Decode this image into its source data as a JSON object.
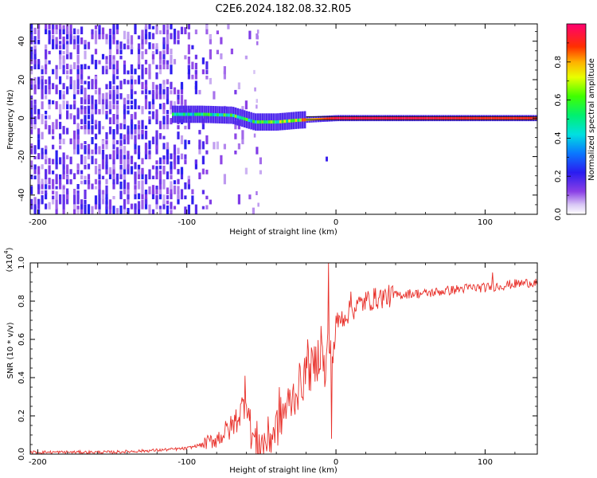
{
  "title": "C2E6.2024.182.08.32.R05",
  "chart_data": [
    {
      "type": "heatmap",
      "xlabel": "Height of straight line (km)",
      "ylabel": "Frequency (Hz)",
      "xlim": [
        -205,
        135
      ],
      "ylim": [
        -50,
        49
      ],
      "xticks": [
        -200,
        -100,
        0,
        100
      ],
      "yticks": [
        -40,
        -20,
        0,
        20,
        40
      ],
      "colorbar": {
        "label": "Normalized spectral amplitude",
        "range": [
          0,
          1
        ],
        "ticks": [
          "0.0",
          "0.2",
          "0.4",
          "0.6",
          "0.8"
        ]
      },
      "ridge": [
        {
          "x": -110,
          "freq": 2,
          "amp": 0.45
        },
        {
          "x": -90,
          "freq": 2,
          "amp": 0.5
        },
        {
          "x": -70,
          "freq": 1.5,
          "amp": 0.55
        },
        {
          "x": -55,
          "freq": -2,
          "amp": 0.5
        },
        {
          "x": -40,
          "freq": -2,
          "amp": 0.6
        },
        {
          "x": -25,
          "freq": -1,
          "amp": 0.7
        },
        {
          "x": 0,
          "freq": 0,
          "amp": 0.95
        },
        {
          "x": 50,
          "freq": 0,
          "amp": 0.95
        },
        {
          "x": 100,
          "freq": 0,
          "amp": 0.9
        },
        {
          "x": 135,
          "freq": 0,
          "amp": 0.9
        }
      ]
    },
    {
      "type": "line",
      "xlabel": "Height of straight line (km)",
      "ylabel": "SNR (10 * v/v)",
      "yscale_label": "(x10",
      "yscale_exp": "4",
      "xlim": [
        -205,
        135
      ],
      "ylim": [
        0,
        1.0
      ],
      "xticks": [
        -200,
        -100,
        0,
        100
      ],
      "yticks": [
        "0.0",
        "0.2",
        "0.4",
        "0.6",
        "0.8",
        "1.0"
      ],
      "color": "#e8302a",
      "series": [
        {
          "x": [
            -205,
            -180,
            -150,
            -120,
            -100,
            -90,
            -80,
            -70,
            -64,
            -60,
            -57,
            -54,
            -50,
            -45,
            -40,
            -35,
            -30,
            -25,
            -20,
            -15,
            -10,
            -7,
            -5,
            -3,
            0,
            5,
            10,
            15,
            20,
            25,
            30,
            40,
            50,
            60,
            70,
            80,
            90,
            100,
            110,
            120,
            135
          ],
          "y": [
            0.01,
            0.01,
            0.01,
            0.02,
            0.03,
            0.05,
            0.08,
            0.14,
            0.22,
            0.3,
            0.12,
            0.06,
            0.05,
            0.08,
            0.14,
            0.22,
            0.28,
            0.35,
            0.42,
            0.45,
            0.55,
            0.4,
            0.62,
            0.45,
            0.68,
            0.72,
            0.75,
            0.78,
            0.8,
            0.81,
            0.82,
            0.83,
            0.84,
            0.84,
            0.85,
            0.86,
            0.87,
            0.87,
            0.88,
            0.89,
            0.9
          ],
          "spikes": [
            {
              "x": -61,
              "y": 0.41
            },
            {
              "x": -38,
              "y": 0.35
            },
            {
              "x": -19,
              "y": 0.6
            },
            {
              "x": -10,
              "y": 0.67
            },
            {
              "x": -5,
              "y": 1.0
            },
            {
              "x": -3,
              "y": 0.08
            },
            {
              "x": 10,
              "y": 0.85
            },
            {
              "x": 105,
              "y": 0.95
            }
          ]
        }
      ]
    }
  ]
}
